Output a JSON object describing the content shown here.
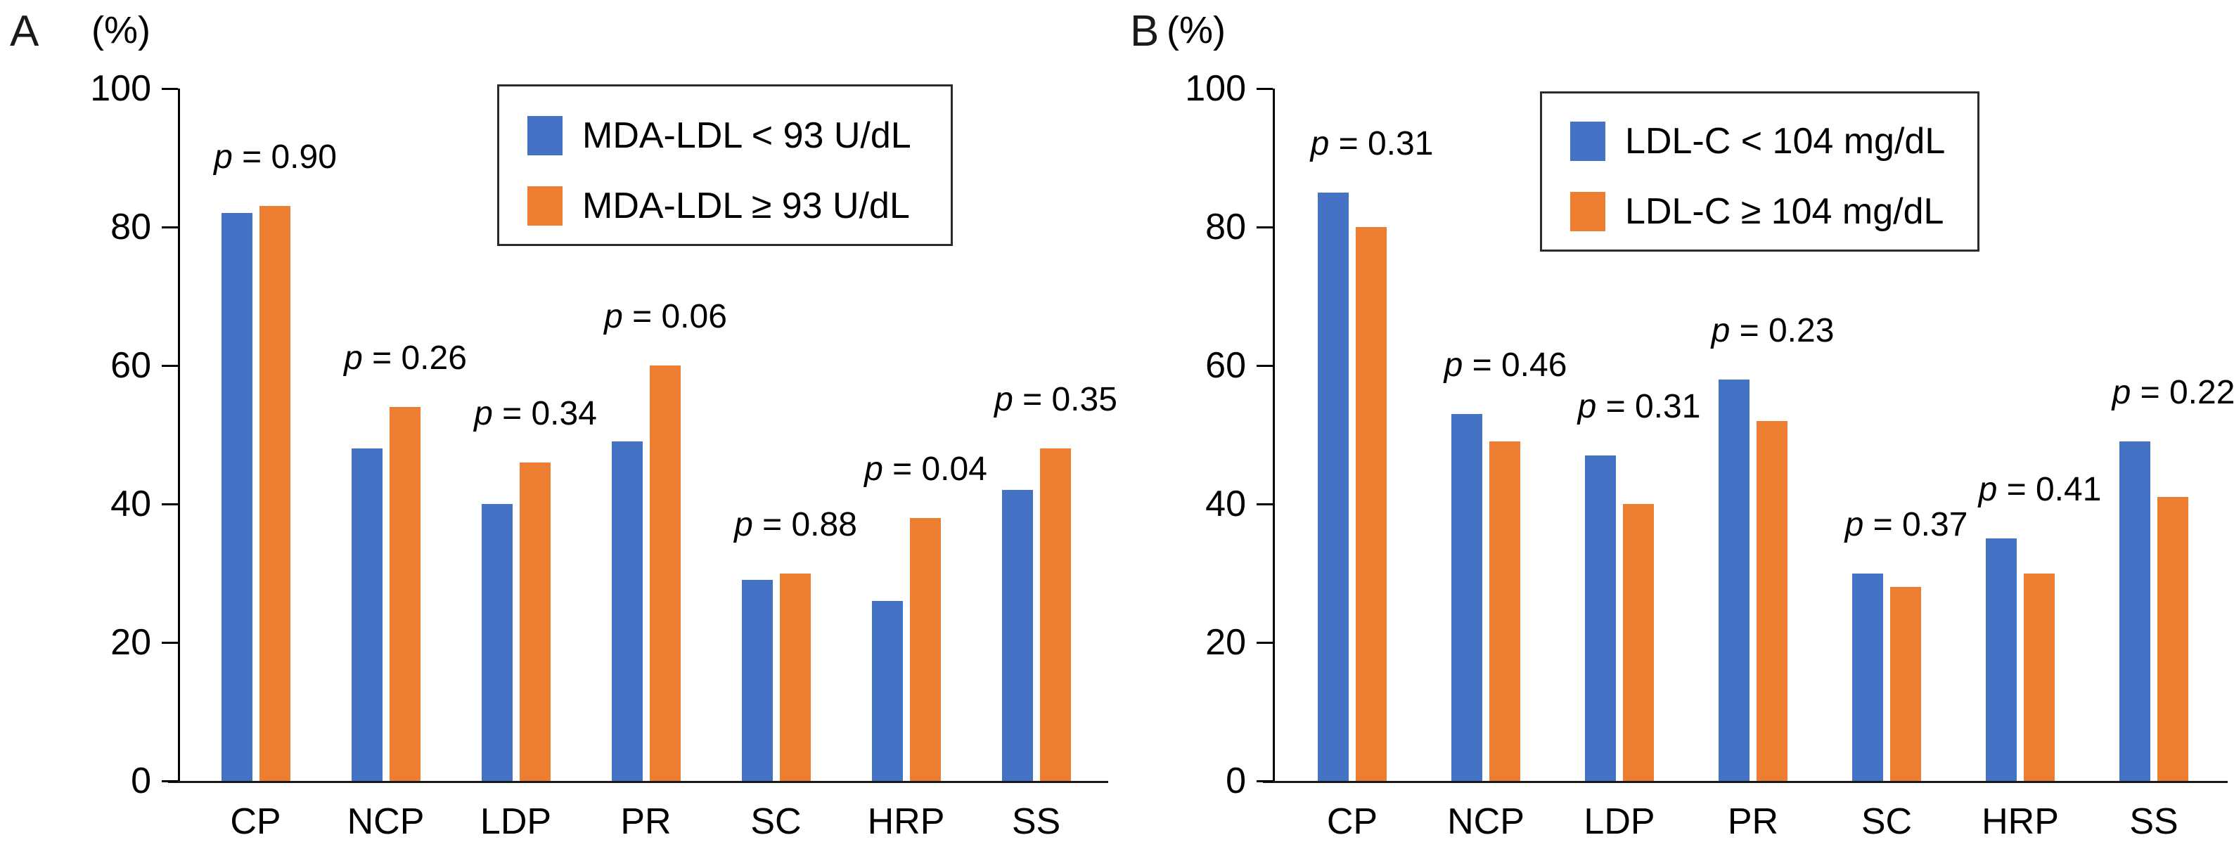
{
  "figure": {
    "background": "#ffffff",
    "axis_color": "#000000",
    "text_color": "#000000",
    "p_equals": " = "
  },
  "chart_data": [
    {
      "type": "bar",
      "panel_label": "A",
      "ylabel": "(%)",
      "ylim": [
        0,
        100
      ],
      "yticks": [
        "0",
        "20",
        "40",
        "60",
        "80",
        "100"
      ],
      "grid": false,
      "legend_position": "top-right",
      "categories": [
        "CP",
        "NCP",
        "LDP",
        "PR",
        "SC",
        "HRP",
        "SS"
      ],
      "series": [
        {
          "name": "MDA-LDL < 93 U/dL",
          "color": "#4472C4",
          "values": [
            82,
            48,
            40,
            49,
            29,
            26,
            42
          ]
        },
        {
          "name": "MDA-LDL ≥ 93 U/dL",
          "color": "#ED7D31",
          "values": [
            83,
            54,
            46,
            60,
            30,
            38,
            48
          ]
        }
      ],
      "p_var": "p",
      "p_values": [
        "0.90",
        "0.26",
        "0.34",
        "0.06",
        "0.88",
        "0.04",
        "0.35"
      ]
    },
    {
      "type": "bar",
      "panel_label": "B",
      "ylabel": "(%)",
      "ylim": [
        0,
        100
      ],
      "yticks": [
        "0",
        "20",
        "40",
        "60",
        "80",
        "100"
      ],
      "grid": false,
      "legend_position": "top-right",
      "categories": [
        "CP",
        "NCP",
        "LDP",
        "PR",
        "SC",
        "HRP",
        "SS"
      ],
      "series": [
        {
          "name": "LDL-C < 104 mg/dL",
          "color": "#4472C4",
          "values": [
            85,
            53,
            47,
            58,
            30,
            35,
            49
          ]
        },
        {
          "name": "LDL-C ≥ 104 mg/dL",
          "color": "#ED7D31",
          "values": [
            80,
            49,
            40,
            52,
            28,
            30,
            41
          ]
        }
      ],
      "p_var": "p",
      "p_values": [
        "0.31",
        "0.46",
        "0.31",
        "0.23",
        "0.37",
        "0.41",
        "0.22"
      ]
    }
  ]
}
